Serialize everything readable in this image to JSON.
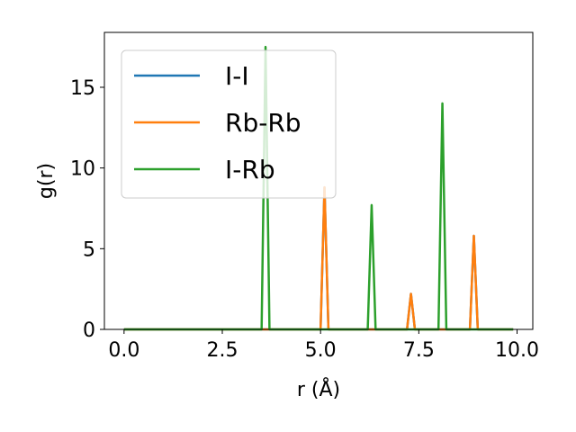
{
  "chart_data": {
    "type": "line",
    "xlabel": "r (Å)",
    "ylabel": "g(r)",
    "xlim": [
      -0.5,
      10.4
    ],
    "ylim": [
      0,
      18.4
    ],
    "xticks": [
      0.0,
      2.5,
      5.0,
      7.5,
      10.0
    ],
    "xtick_labels": [
      "0.0",
      "2.5",
      "5.0",
      "7.5",
      "10.0"
    ],
    "yticks": [
      0,
      5,
      10,
      15
    ],
    "ytick_labels": [
      "0",
      "5",
      "10",
      "15"
    ],
    "grid": false,
    "legend_position": "upper-left",
    "series": [
      {
        "name": "I-I",
        "color": "#1f77b4",
        "x": [
          0.0,
          5.0,
          5.1,
          5.2,
          7.2,
          7.3,
          7.4,
          8.8,
          8.9,
          9.0,
          9.9
        ],
        "y": [
          0,
          0,
          8.8,
          0,
          0,
          2.2,
          0,
          0,
          5.8,
          0,
          0
        ]
      },
      {
        "name": "Rb-Rb",
        "color": "#ff7f0e",
        "x": [
          0.0,
          5.0,
          5.1,
          5.2,
          7.2,
          7.3,
          7.4,
          8.8,
          8.9,
          9.0,
          9.9
        ],
        "y": [
          0,
          0,
          8.8,
          0,
          0,
          2.2,
          0,
          0,
          5.8,
          0,
          0
        ]
      },
      {
        "name": "I-Rb",
        "color": "#2ca02c",
        "x": [
          0.0,
          3.5,
          3.6,
          3.7,
          6.2,
          6.3,
          6.4,
          8.0,
          8.1,
          8.2,
          9.9
        ],
        "y": [
          0,
          0,
          17.5,
          0,
          0,
          7.7,
          0,
          0,
          14.0,
          0,
          0
        ]
      }
    ]
  }
}
